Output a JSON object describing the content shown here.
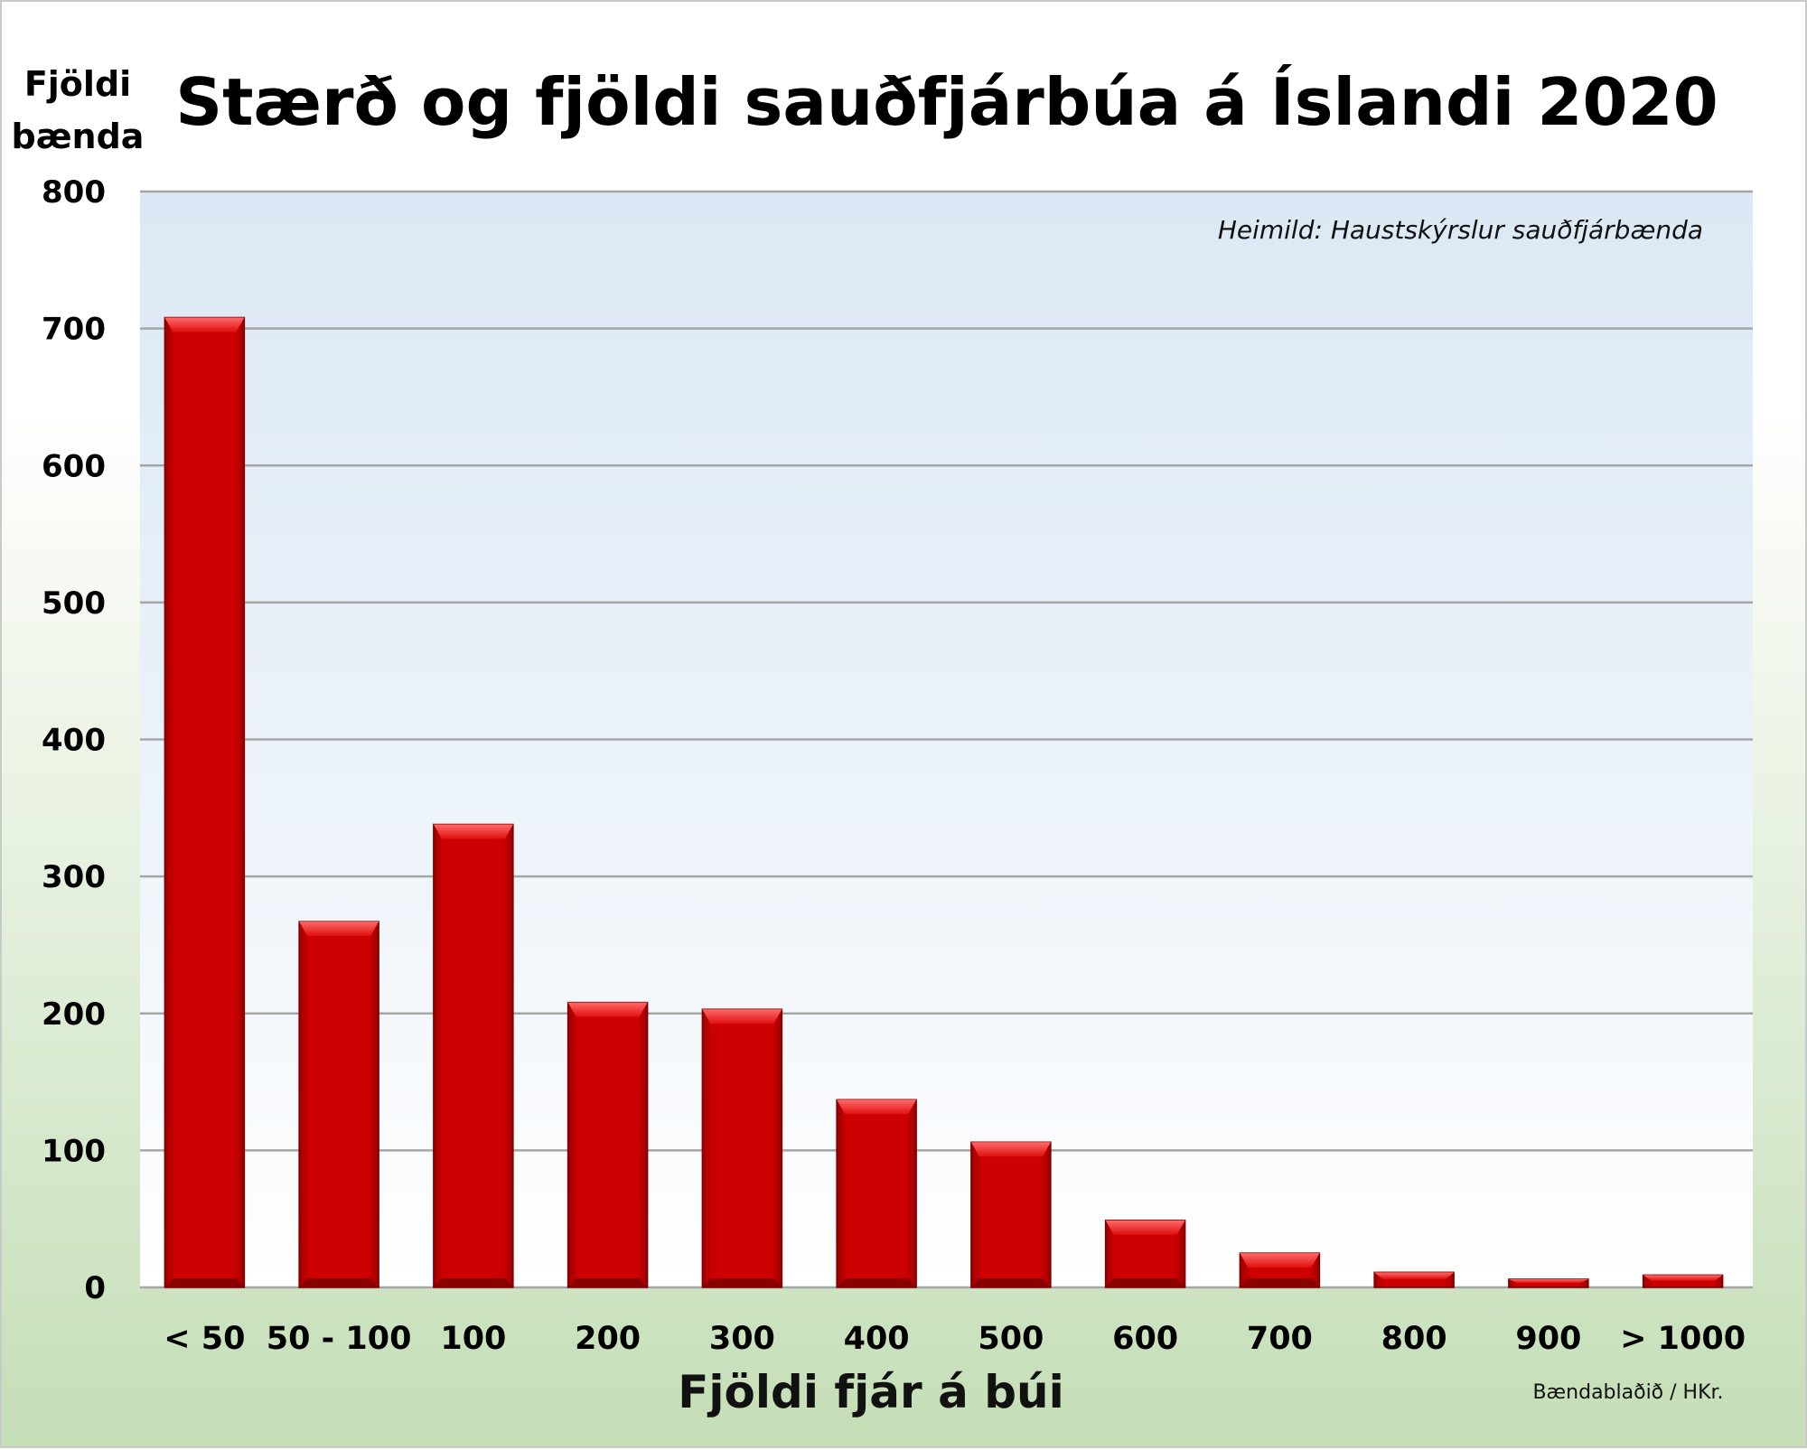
{
  "chart_data": {
    "type": "bar",
    "title": "Stærð og fjöldi sauðfjárbúa á Íslandi 2020",
    "ylabel_line1": "Fjöldi",
    "ylabel_line2": "bænda",
    "xlabel": "Fjöldi fjár á búi",
    "source": "Heimild: Haustskýrslur sauðfjárbænda",
    "credit": "Bændablaðið / HKr.",
    "categories": [
      "< 50",
      "50 - 100",
      "100",
      "200",
      "300",
      "400",
      "500",
      "600",
      "700",
      "800",
      "900",
      "> 1000"
    ],
    "values": [
      708,
      267,
      338,
      208,
      203,
      137,
      106,
      49,
      25,
      11,
      6,
      9
    ],
    "ylim": [
      0,
      800
    ],
    "yticks": [
      0,
      100,
      200,
      300,
      400,
      500,
      600,
      700,
      800
    ],
    "grid": true,
    "bar_color": "#c80000"
  }
}
